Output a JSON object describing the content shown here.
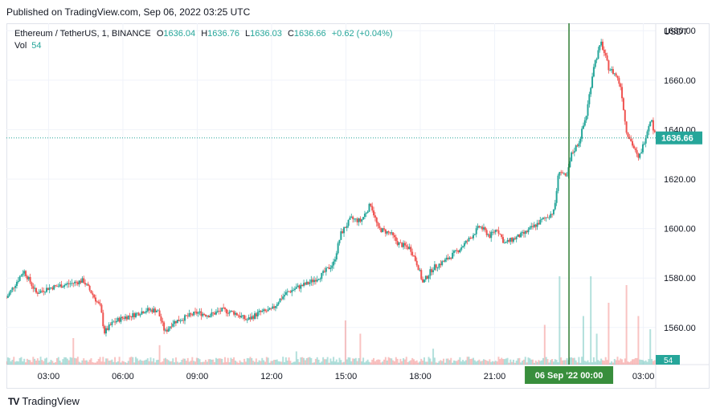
{
  "header": {
    "published": "Published on TradingView.com, Sep 06, 2022 03:25 UTC"
  },
  "legend": {
    "symbol": "Ethereum / TetherUS, 1, BINANCE",
    "open_label": "O",
    "open": "1636.04",
    "high_label": "H",
    "high": "1636.76",
    "low_label": "L",
    "low": "1636.03",
    "close_label": "C",
    "close": "1636.66",
    "change": "+0.62 (+0.04%)",
    "vol_label": "Vol",
    "vol": "54"
  },
  "price_scale": {
    "currency": "USDT",
    "last_price_label": "1636.66",
    "volume_label": "54"
  },
  "time_scale": {
    "crosshair_label": "06 Sep '22   00:00"
  },
  "footer": {
    "brand": "TradingView",
    "logo": "TV"
  },
  "colors": {
    "up": "#26a69a",
    "down": "#ef5350",
    "crosshair": "#2e7d32",
    "grid": "#f0f3fa"
  },
  "chart_data": {
    "type": "candlestick",
    "y_unit": "USDT",
    "yticks": [
      1560,
      1580,
      1600,
      1620,
      1640,
      1660,
      1680
    ],
    "ylim": [
      1545,
      1683
    ],
    "xticks": [
      "03:00",
      "06:00",
      "09:00",
      "12:00",
      "15:00",
      "18:00",
      "21:00",
      "03:00"
    ],
    "x_tick_hours": [
      3,
      6,
      9,
      12,
      15,
      18,
      21,
      27
    ],
    "x_range_hours": [
      1.3,
      27.5
    ],
    "crosshair_hour": 24,
    "last_price": 1636.66,
    "path": [
      [
        1.3,
        1572
      ],
      [
        2.0,
        1583
      ],
      [
        2.5,
        1574
      ],
      [
        3.0,
        1576
      ],
      [
        3.5,
        1577
      ],
      [
        4.0,
        1578
      ],
      [
        4.4,
        1579
      ],
      [
        4.8,
        1573
      ],
      [
        5.1,
        1568
      ],
      [
        5.25,
        1558
      ],
      [
        5.6,
        1562
      ],
      [
        6.0,
        1564
      ],
      [
        6.4,
        1565
      ],
      [
        6.9,
        1567
      ],
      [
        7.4,
        1567
      ],
      [
        7.7,
        1558
      ],
      [
        8.0,
        1562
      ],
      [
        8.5,
        1564
      ],
      [
        9.0,
        1566
      ],
      [
        9.5,
        1565
      ],
      [
        10.0,
        1567
      ],
      [
        10.5,
        1566
      ],
      [
        11.0,
        1563
      ],
      [
        11.5,
        1566
      ],
      [
        12.0,
        1567
      ],
      [
        12.3,
        1571
      ],
      [
        12.6,
        1574
      ],
      [
        13.0,
        1576
      ],
      [
        13.5,
        1578
      ],
      [
        14.0,
        1581
      ],
      [
        14.5,
        1586
      ],
      [
        14.8,
        1598
      ],
      [
        15.2,
        1604
      ],
      [
        15.6,
        1603
      ],
      [
        16.0,
        1610
      ],
      [
        16.3,
        1600
      ],
      [
        16.8,
        1598
      ],
      [
        17.1,
        1594
      ],
      [
        17.6,
        1592
      ],
      [
        17.9,
        1585
      ],
      [
        18.1,
        1578
      ],
      [
        18.5,
        1584
      ],
      [
        19.0,
        1587
      ],
      [
        19.5,
        1591
      ],
      [
        20.0,
        1596
      ],
      [
        20.4,
        1601
      ],
      [
        20.8,
        1597
      ],
      [
        21.1,
        1600
      ],
      [
        21.4,
        1594
      ],
      [
        21.8,
        1596
      ],
      [
        22.2,
        1598
      ],
      [
        22.6,
        1601
      ],
      [
        23.0,
        1604
      ],
      [
        23.4,
        1607
      ],
      [
        23.6,
        1624
      ],
      [
        23.9,
        1620
      ],
      [
        24.1,
        1630
      ],
      [
        24.4,
        1635
      ],
      [
        24.7,
        1646
      ],
      [
        25.0,
        1666
      ],
      [
        25.3,
        1675
      ],
      [
        25.6,
        1665
      ],
      [
        25.9,
        1662
      ],
      [
        26.1,
        1657
      ],
      [
        26.3,
        1640
      ],
      [
        26.6,
        1633
      ],
      [
        26.8,
        1628
      ],
      [
        27.0,
        1634
      ],
      [
        27.3,
        1645
      ],
      [
        27.6,
        1632
      ],
      [
        27.8,
        1636
      ]
    ],
    "volume": {
      "spikes": [
        [
          4.0,
          30
        ],
        [
          7.5,
          22
        ],
        [
          13.0,
          15
        ],
        [
          15.0,
          50
        ],
        [
          15.6,
          35
        ],
        [
          18.5,
          18
        ],
        [
          23.0,
          45
        ],
        [
          23.6,
          100
        ],
        [
          24.6,
          55
        ],
        [
          24.9,
          100
        ],
        [
          25.1,
          35
        ],
        [
          25.6,
          70
        ],
        [
          26.3,
          90
        ],
        [
          26.8,
          55
        ],
        [
          27.3,
          40
        ]
      ]
    }
  }
}
